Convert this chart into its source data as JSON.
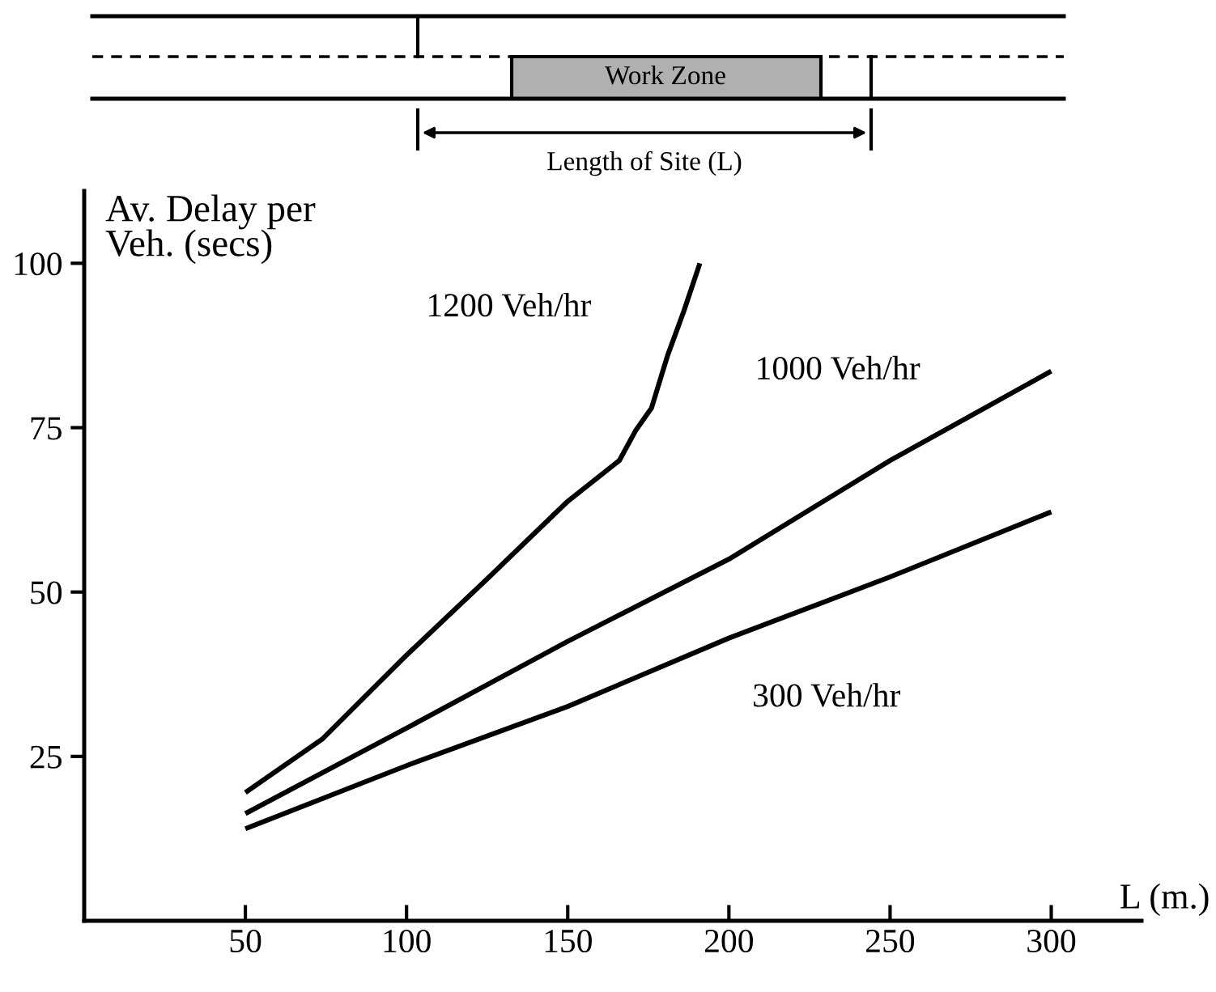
{
  "chart_data": {
    "type": "line",
    "xlabel": "L (m.)",
    "ylabel": "Av. Delay per\nVeh. (secs)",
    "xlim": [
      0,
      328
    ],
    "ylim": [
      0,
      111
    ],
    "xticks": [
      50,
      100,
      150,
      200,
      250,
      300
    ],
    "yticks": [
      25,
      50,
      75,
      100
    ],
    "grid": false,
    "legend": false,
    "marker": "none",
    "line_style": "solid",
    "annotations": [
      "Work Zone",
      "Length of Site (L)"
    ],
    "series": [
      {
        "name": "1200 Veh/hr",
        "color": "#000000",
        "x": [
          50,
          74,
          100,
          125,
          150,
          166,
          171,
          176,
          181,
          186,
          191
        ],
        "values": [
          19.5,
          27.7,
          40.4,
          52,
          63.8,
          70,
          74.5,
          78,
          86,
          92.7,
          100
        ]
      },
      {
        "name": "1000 Veh/hr",
        "color": "#000000",
        "x": [
          50,
          100,
          150,
          200,
          250,
          300
        ],
        "values": [
          16.3,
          29.3,
          42.5,
          55,
          70,
          83.6
        ]
      },
      {
        "name": "300 Veh/hr",
        "color": "#000000",
        "x": [
          50,
          100,
          150,
          200,
          250,
          300
        ],
        "values": [
          14,
          23.6,
          32.6,
          43,
          52.3,
          62.2
        ]
      }
    ]
  }
}
